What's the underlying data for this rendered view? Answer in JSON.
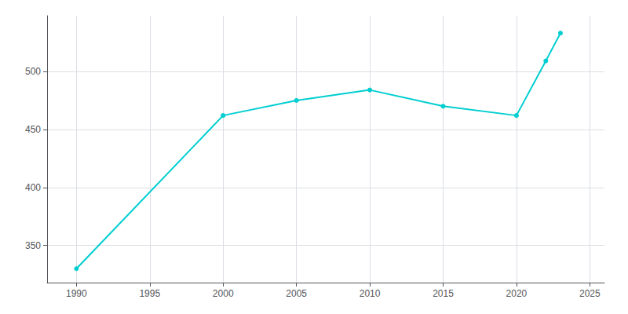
{
  "chart_data": {
    "type": "line",
    "x": [
      1990,
      2000,
      2005,
      2010,
      2015,
      2020,
      2022,
      2023
    ],
    "values": [
      330,
      462,
      475,
      484,
      470,
      462,
      509,
      533
    ],
    "color": "#00CED1",
    "marker": "circle",
    "xlim": [
      1988,
      2026
    ],
    "ylim": [
      318,
      548
    ],
    "xticks": [
      1990,
      1995,
      2000,
      2005,
      2010,
      2015,
      2020,
      2025
    ],
    "yticks": [
      350,
      400,
      450,
      500
    ],
    "grid": true
  }
}
